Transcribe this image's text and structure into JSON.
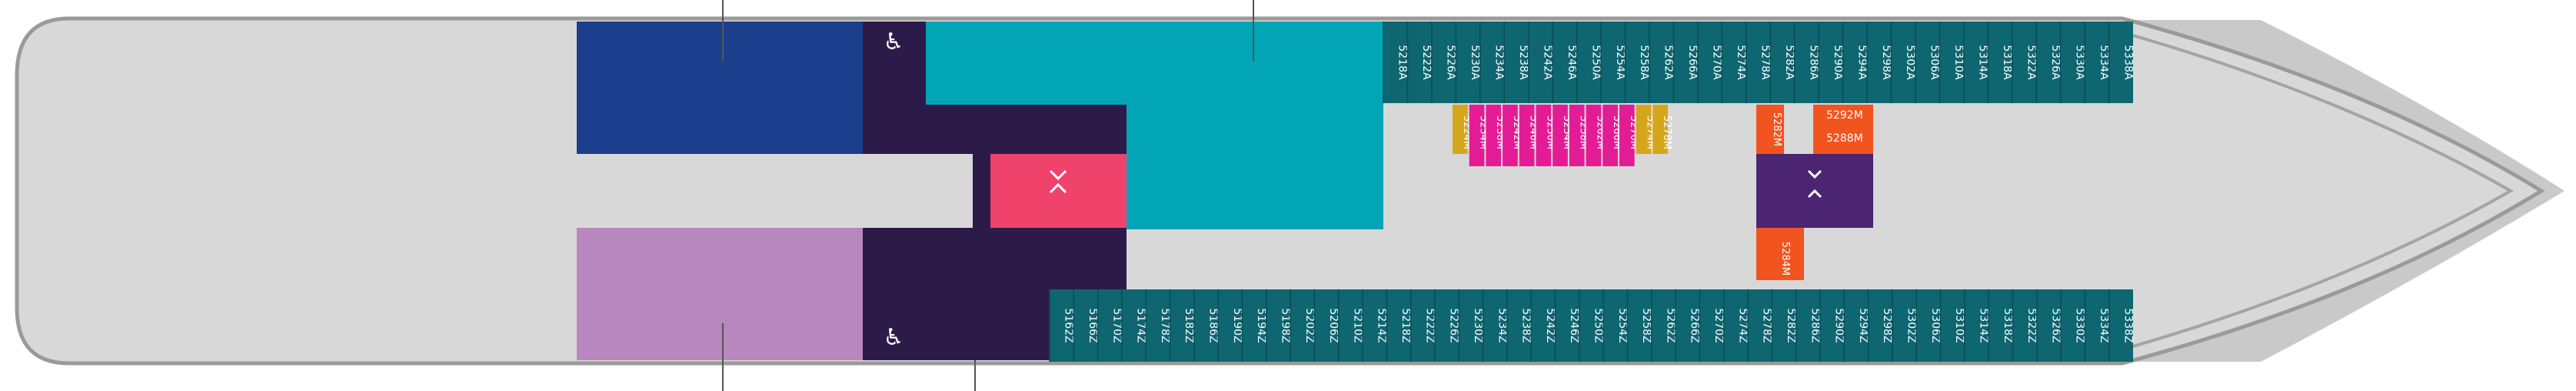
{
  "deck": {
    "colors": {
      "hull": "#d9d8d8",
      "hull_stroke": "#9a9a9a",
      "teal": "#0e6671",
      "teal_light": "#02a5b6",
      "navy": "#1b3f8c",
      "dark_purple": "#2c1b49",
      "lilac": "#b887bd",
      "pink_red": "#ef436b",
      "magenta": "#e31c96",
      "mustard": "#d5a61c",
      "orange": "#f2541f",
      "purple": "#4b2472"
    },
    "top_cabins": [
      "5218A",
      "5222A",
      "5226A",
      "5230A",
      "5234A",
      "5238A",
      "5242A",
      "5246A",
      "5250A",
      "5254A",
      "5258A",
      "5262A",
      "5266A",
      "5270A",
      "5274A",
      "5278A",
      "5282A",
      "5286A",
      "5290A",
      "5294A",
      "5298A",
      "5302A",
      "5306A",
      "5310A",
      "5314A",
      "5318A",
      "5322A",
      "5326A",
      "5330A",
      "5334A",
      "5338A"
    ],
    "inner_cabins": [
      "5224M",
      "5234M",
      "5238M",
      "5242M",
      "5246M",
      "5250M",
      "5254M",
      "5258M",
      "5262M",
      "5266M",
      "5270M",
      "5274M",
      "5278M"
    ],
    "inner_cabin_flags": [
      "mustard",
      "magenta",
      "magenta",
      "magenta",
      "magenta",
      "magenta",
      "magenta",
      "magenta",
      "magenta",
      "magenta",
      "magenta",
      "mustard",
      "mustard"
    ],
    "orange_top_label": "5282M",
    "stacked_labels": [
      "5292M",
      "5288M"
    ],
    "orange_bottom_label": "5284M",
    "bottom_cabins": [
      "5162Z",
      "5166Z",
      "5170Z",
      "5174Z",
      "5178Z",
      "5182Z",
      "5186Z",
      "5190Z",
      "5194Z",
      "5198Z",
      "5202Z",
      "5206Z",
      "5210Z",
      "5214Z",
      "5218Z",
      "5222Z",
      "5226Z",
      "5230Z",
      "5234Z",
      "5238Z",
      "5242Z",
      "5246Z",
      "5250Z",
      "5254Z",
      "5258Z",
      "5262Z",
      "5266Z",
      "5270Z",
      "5274Z",
      "5278Z",
      "5282Z",
      "5286Z",
      "5290Z",
      "5294Z",
      "5298Z",
      "5302Z",
      "5306Z",
      "5310Z",
      "5314Z",
      "5318Z",
      "5322Z",
      "5326Z",
      "5330Z",
      "5334Z",
      "5338Z"
    ]
  }
}
